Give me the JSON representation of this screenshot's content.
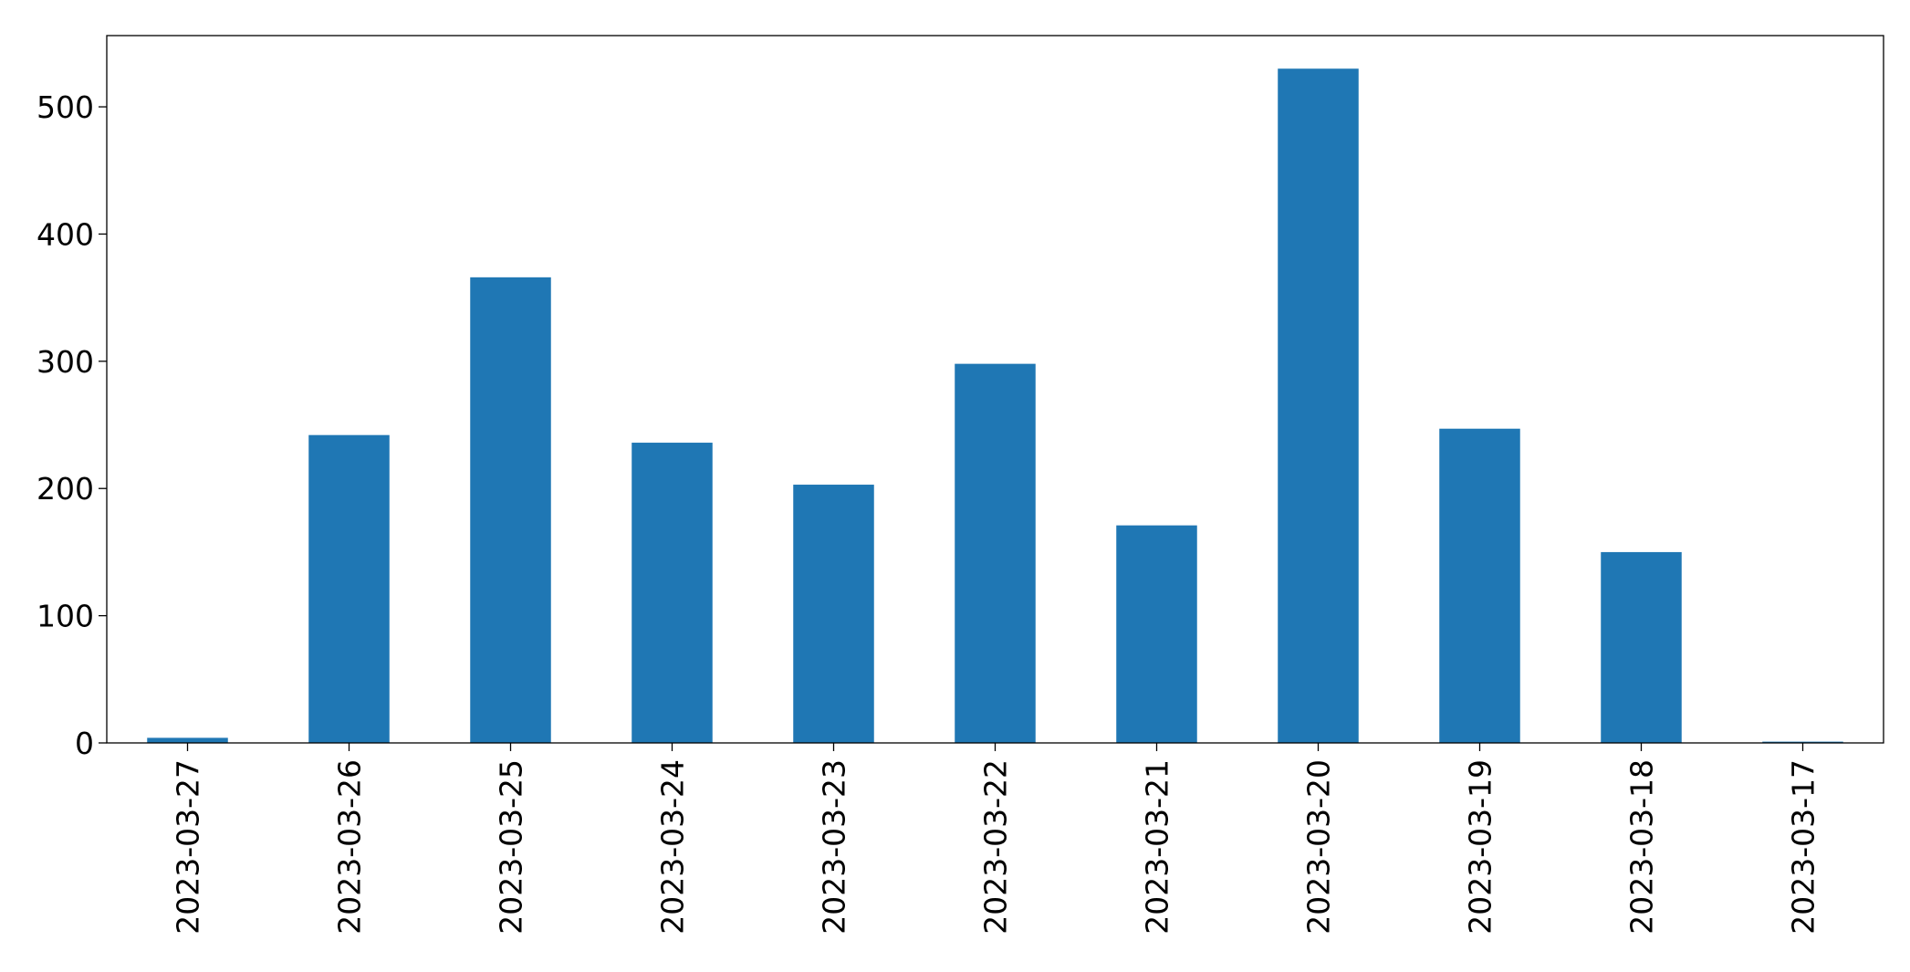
{
  "chart_data": {
    "type": "bar",
    "categories": [
      "2023-03-27",
      "2023-03-26",
      "2023-03-25",
      "2023-03-24",
      "2023-03-23",
      "2023-03-22",
      "2023-03-21",
      "2023-03-20",
      "2023-03-19",
      "2023-03-18",
      "2023-03-17"
    ],
    "values": [
      4,
      242,
      366,
      236,
      203,
      298,
      171,
      530,
      247,
      150,
      1
    ],
    "ylim": [
      0,
      556
    ],
    "yticks": [
      0,
      100,
      200,
      300,
      400,
      500
    ],
    "title": "",
    "xlabel": "",
    "ylabel": "",
    "bar_color": "#1f77b4",
    "grid": false,
    "legend": "none"
  }
}
